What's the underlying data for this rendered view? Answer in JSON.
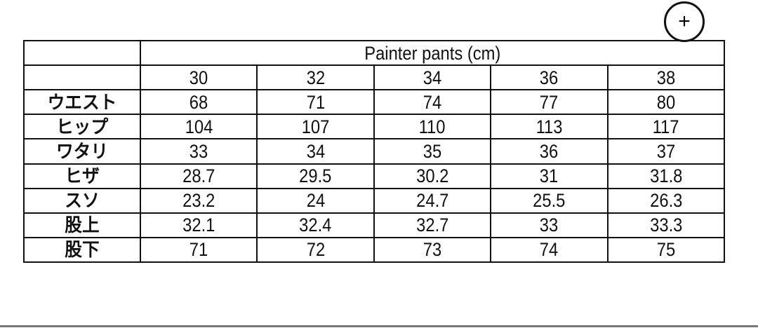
{
  "table": {
    "title": "Painter pants (cm)",
    "sizes": [
      "30",
      "32",
      "34",
      "36",
      "38"
    ],
    "rows": [
      {
        "label": "ウエスト",
        "values": [
          "68",
          "71",
          "74",
          "77",
          "80"
        ]
      },
      {
        "label": "ヒップ",
        "values": [
          "104",
          "107",
          "110",
          "113",
          "117"
        ]
      },
      {
        "label": "ワタリ",
        "values": [
          "33",
          "34",
          "35",
          "36",
          "37"
        ]
      },
      {
        "label": "ヒザ",
        "values": [
          "28.7",
          "29.5",
          "30.2",
          "31",
          "31.8"
        ]
      },
      {
        "label": "スソ",
        "values": [
          "23.2",
          "24",
          "24.7",
          "25.5",
          "26.3"
        ]
      },
      {
        "label": "股上",
        "values": [
          "32.1",
          "32.4",
          "32.7",
          "33",
          "33.3"
        ]
      },
      {
        "label": "股下",
        "values": [
          "71",
          "72",
          "73",
          "74",
          "75"
        ]
      }
    ]
  },
  "zoom_button": {
    "icon": "plus-icon",
    "label": "+"
  }
}
